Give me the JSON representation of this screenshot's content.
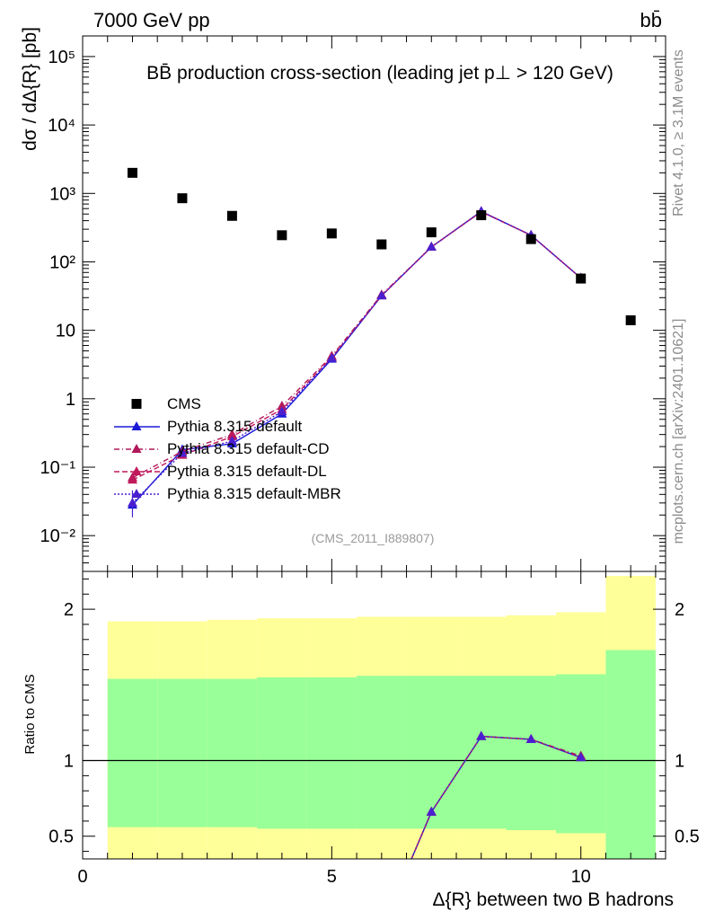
{
  "header": {
    "left": "7000 GeV pp",
    "right": "bb̄"
  },
  "side_text": {
    "rivet": "Rivet 4.1.0, ≥ 3.1M events",
    "mcplots": "mcplots.cern.ch [arXiv:2401.10621]"
  },
  "colors": {
    "data": "#000000",
    "default": "#1a1ad6",
    "cd": "#b0185a",
    "dl": "#c0185a",
    "mbr": "#4a1fd0",
    "band_inner": "#99ff99",
    "band_outer": "#ffff99"
  },
  "chart_data": [
    {
      "type": "scatter",
      "title": "BB̄ production cross-section (leading jet p⊥ > 120 GeV)",
      "analysis_label": "(CMS_2011_I889807)",
      "xlabel": "",
      "ylabel": "dσ / dΔ{R} [pb]",
      "yscale": "log",
      "xlim": [
        0,
        11.7
      ],
      "ylim": [
        0.003,
        200000
      ],
      "y_ticks": [
        "10⁻²",
        "10⁻¹",
        "1",
        "10",
        "10²",
        "10³",
        "10⁴",
        "10⁵"
      ],
      "legend": {
        "position": "lower-left",
        "entries": [
          "CMS",
          "Pythia 8.315 default",
          "Pythia 8.315 default-CD",
          "Pythia 8.315 default-DL",
          "Pythia 8.315 default-MBR"
        ]
      },
      "data_series": {
        "name": "CMS",
        "x": [
          1,
          2,
          3,
          4,
          5,
          6,
          7,
          8,
          9,
          10,
          11
        ],
        "y": [
          2000,
          850,
          470,
          245,
          260,
          180,
          270,
          480,
          215,
          57,
          14
        ]
      },
      "series": [
        {
          "name": "Pythia 8.315 default",
          "x": [
            1,
            2,
            3,
            4,
            5,
            6,
            7,
            8,
            9,
            10
          ],
          "y": [
            0.028,
            0.18,
            0.22,
            0.6,
            3.8,
            32,
            165,
            545,
            245,
            58
          ]
        },
        {
          "name": "Pythia 8.315 default-CD",
          "x": [
            1,
            2,
            3,
            4,
            5,
            6,
            7,
            8,
            9,
            10
          ],
          "y": [
            0.07,
            0.17,
            0.3,
            0.78,
            4.2,
            33,
            165,
            540,
            245,
            58
          ]
        },
        {
          "name": "Pythia 8.315 default-DL",
          "x": [
            1,
            2,
            3,
            4,
            5,
            6,
            7,
            8,
            9,
            10
          ],
          "y": [
            0.065,
            0.15,
            0.28,
            0.7,
            4.0,
            32,
            165,
            540,
            245,
            58
          ]
        },
        {
          "name": "Pythia 8.315 default-MBR",
          "x": [
            1,
            2,
            3,
            4,
            5,
            6,
            7,
            8,
            9,
            10
          ],
          "y": [
            0.03,
            0.16,
            0.24,
            0.65,
            3.9,
            32,
            165,
            545,
            245,
            58
          ]
        }
      ]
    },
    {
      "type": "line",
      "title": "",
      "xlabel": "Δ{R} between two B hadrons",
      "ylabel": "Ratio to CMS",
      "xlim": [
        0,
        11.7
      ],
      "ylim": [
        0.35,
        2.25
      ],
      "x_ticks": [
        0,
        5,
        10
      ],
      "y_ticks": [
        0.5,
        1,
        2
      ],
      "reference_line": 1,
      "bands": {
        "bin_edges": [
          0.5,
          1.5,
          2.5,
          3.5,
          4.5,
          5.5,
          6.5,
          7.5,
          8.5,
          9.5,
          10.5,
          11.5
        ],
        "inner_low": [
          0.56,
          0.56,
          0.56,
          0.55,
          0.55,
          0.55,
          0.55,
          0.55,
          0.54,
          0.52,
          0.35
        ],
        "inner_high": [
          1.54,
          1.54,
          1.54,
          1.55,
          1.55,
          1.56,
          1.56,
          1.56,
          1.56,
          1.57,
          1.73
        ],
        "outer_low": [
          0.35,
          0.35,
          0.35,
          0.35,
          0.35,
          0.35,
          0.35,
          0.35,
          0.35,
          0.35,
          0.35
        ],
        "outer_high": [
          1.92,
          1.92,
          1.93,
          1.94,
          1.94,
          1.95,
          1.95,
          1.95,
          1.96,
          1.98,
          2.22
        ]
      },
      "series": [
        {
          "name": "Pythia 8.315 default",
          "x": [
            6.6,
            7,
            8,
            9,
            10
          ],
          "y": [
            0.35,
            0.66,
            1.16,
            1.14,
            1.02
          ]
        },
        {
          "name": "Pythia 8.315 default-CD",
          "x": [
            6.6,
            7,
            8,
            9,
            10
          ],
          "y": [
            0.35,
            0.66,
            1.16,
            1.14,
            1.03
          ]
        },
        {
          "name": "Pythia 8.315 default-DL",
          "x": [
            6.6,
            7,
            8,
            9,
            10
          ],
          "y": [
            0.35,
            0.66,
            1.16,
            1.14,
            1.02
          ]
        },
        {
          "name": "Pythia 8.315 default-MBR",
          "x": [
            6.6,
            7,
            8,
            9,
            10
          ],
          "y": [
            0.35,
            0.66,
            1.16,
            1.14,
            1.02
          ]
        }
      ]
    }
  ]
}
